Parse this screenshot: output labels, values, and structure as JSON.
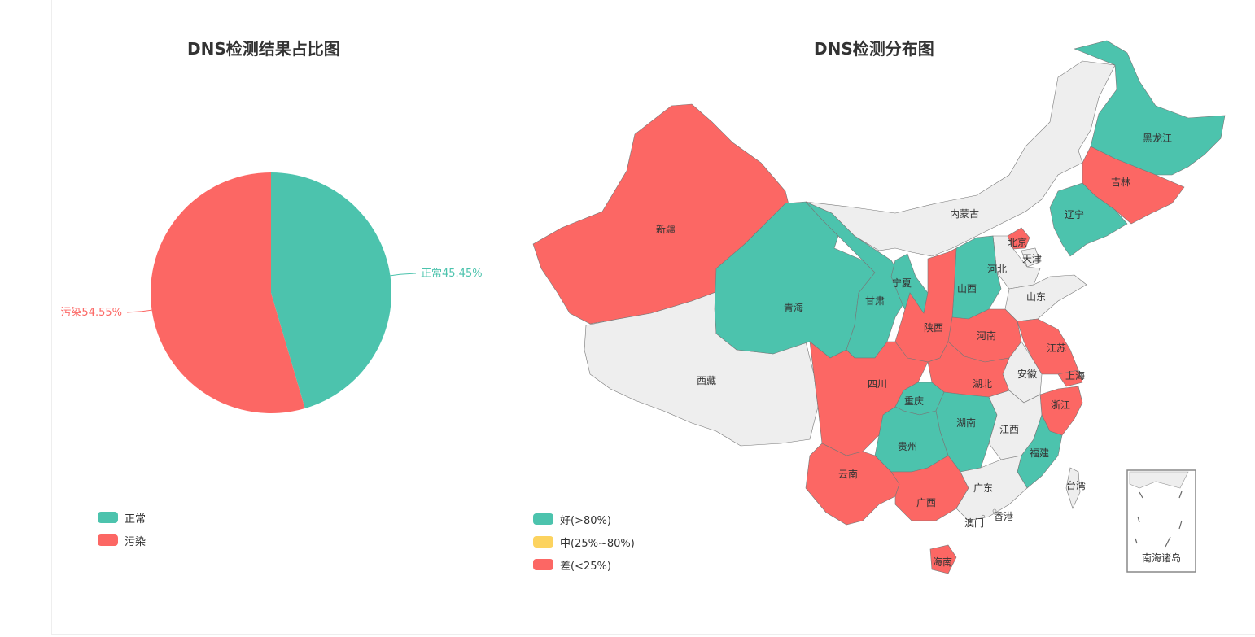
{
  "charts": {
    "pie_title": "DNS检测结果占比图",
    "map_title": "DNS检测分布图"
  },
  "colors": {
    "good": "#4cc3ad",
    "mid": "#fcd35f",
    "bad": "#fc6764",
    "neutral": "#eeeeee",
    "border": "#777777"
  },
  "pie_legend": [
    {
      "label": "正常",
      "color": "#4cc3ad"
    },
    {
      "label": "污染",
      "color": "#fc6764"
    }
  ],
  "map_legend": [
    {
      "label": "好(>80%)",
      "color": "#4cc3ad"
    },
    {
      "label": "中(25%~80%)",
      "color": "#fcd35f"
    },
    {
      "label": "差(<25%)",
      "color": "#fc6764"
    }
  ],
  "chart_data": [
    {
      "type": "pie",
      "title": "DNS检测结果占比图",
      "categories": [
        "正常",
        "污染"
      ],
      "values": [
        45.45,
        54.55
      ],
      "labels": [
        "正常45.45%",
        "污染54.55%"
      ],
      "colors": [
        "#4cc3ad",
        "#fc6764"
      ],
      "legend": "bottom-left"
    },
    {
      "type": "map",
      "title": "DNS检测分布图",
      "legend": "bottom-left",
      "inset_label": "南海诸岛",
      "regions": [
        {
          "name": "黑龙江",
          "status": "good"
        },
        {
          "name": "吉林",
          "status": "bad"
        },
        {
          "name": "辽宁",
          "status": "good"
        },
        {
          "name": "内蒙古",
          "status": "none"
        },
        {
          "name": "北京",
          "status": "bad"
        },
        {
          "name": "天津",
          "status": "none"
        },
        {
          "name": "河北",
          "status": "none"
        },
        {
          "name": "山西",
          "status": "good"
        },
        {
          "name": "山东",
          "status": "none"
        },
        {
          "name": "新疆",
          "status": "bad"
        },
        {
          "name": "西藏",
          "status": "none"
        },
        {
          "name": "青海",
          "status": "good"
        },
        {
          "name": "甘肃",
          "status": "good"
        },
        {
          "name": "宁夏",
          "status": "good"
        },
        {
          "name": "陕西",
          "status": "bad"
        },
        {
          "name": "河南",
          "status": "bad"
        },
        {
          "name": "江苏",
          "status": "bad"
        },
        {
          "name": "安徽",
          "status": "none"
        },
        {
          "name": "上海",
          "status": "bad"
        },
        {
          "name": "湖北",
          "status": "bad"
        },
        {
          "name": "四川",
          "status": "bad"
        },
        {
          "name": "重庆",
          "status": "good"
        },
        {
          "name": "浙江",
          "status": "bad"
        },
        {
          "name": "湖南",
          "status": "good"
        },
        {
          "name": "江西",
          "status": "none"
        },
        {
          "name": "贵州",
          "status": "good"
        },
        {
          "name": "福建",
          "status": "good"
        },
        {
          "name": "云南",
          "status": "bad"
        },
        {
          "name": "广西",
          "status": "bad"
        },
        {
          "name": "广东",
          "status": "none"
        },
        {
          "name": "台湾",
          "status": "none"
        },
        {
          "name": "香港",
          "status": "none"
        },
        {
          "name": "澳门",
          "status": "none"
        },
        {
          "name": "海南",
          "status": "bad"
        }
      ]
    }
  ]
}
